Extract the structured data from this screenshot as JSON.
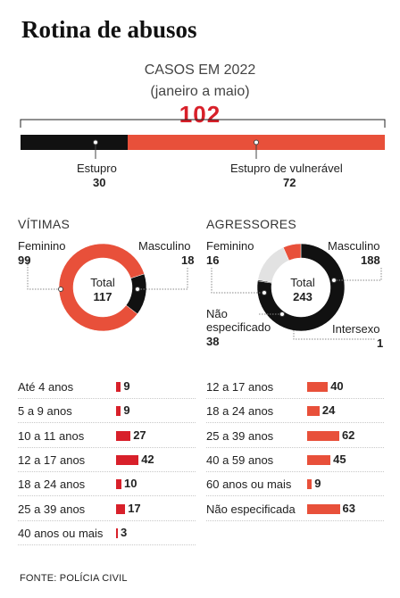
{
  "title": "Rotina de abusos",
  "overview": {
    "subtitle": "CASOS EM 2022",
    "period": "(janeiro a maio)",
    "total": "102"
  },
  "colors": {
    "red": "#e8503a",
    "black": "#111111",
    "gray": "#e2e2e2",
    "bar_red": "#d8202a"
  },
  "chart_data": [
    {
      "type": "bar",
      "orientation": "horizontal-stacked",
      "title": "CASOS EM 2022",
      "categories": [
        "Estupro",
        "Estupro de vulnerável"
      ],
      "values": [
        30,
        72
      ],
      "total": 102
    },
    {
      "type": "pie",
      "style": "donut",
      "title": "VÍTIMAS",
      "center_label": "Total",
      "total": 117,
      "categories": [
        "Feminino",
        "Masculino"
      ],
      "values": [
        99,
        18
      ]
    },
    {
      "type": "pie",
      "style": "donut",
      "title": "AGRESSORES",
      "center_label": "Total",
      "total": 243,
      "categories": [
        "Feminino",
        "Masculino",
        "Não especificado",
        "Intersexo"
      ],
      "values": [
        16,
        188,
        38,
        1
      ]
    },
    {
      "type": "bar",
      "orientation": "horizontal",
      "group": "VÍTIMAS",
      "categories": [
        "Até 4 anos",
        "5 a 9 anos",
        "10 a 11 anos",
        "12 a 17 anos",
        "18 a 24 anos",
        "25 a 39 anos",
        "40 anos ou mais"
      ],
      "values": [
        9,
        9,
        27,
        42,
        10,
        17,
        3
      ]
    },
    {
      "type": "bar",
      "orientation": "horizontal",
      "group": "AGRESSORES",
      "categories": [
        "12 a 17 anos",
        "18 a 24 anos",
        "25 a 39 anos",
        "40 a 59 anos",
        "60 anos ou mais",
        "Não especificada"
      ],
      "values": [
        40,
        24,
        62,
        45,
        9,
        63
      ]
    }
  ],
  "source": "FONTE: POLÍCIA CIVIL"
}
